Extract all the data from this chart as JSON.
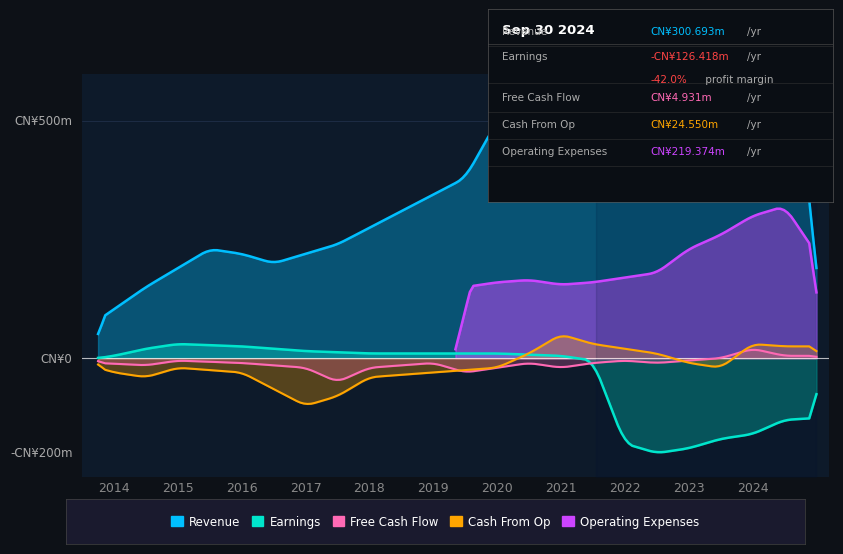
{
  "background_color": "#0d1117",
  "chart_bg_color": "#0d1a2a",
  "ylabel_500": "CN¥500m",
  "ylabel_0": "CN¥0",
  "ylabel_neg200": "-CN¥200m",
  "x_min": 2013.5,
  "x_max": 2025.2,
  "y_min": -250,
  "y_max": 600,
  "colors": {
    "revenue": "#00bfff",
    "earnings": "#00e5cc",
    "free_cash_flow": "#ff69b4",
    "cash_from_op": "#ffa500",
    "operating_expenses": "#cc44ff"
  },
  "legend_items": [
    "Revenue",
    "Earnings",
    "Free Cash Flow",
    "Cash From Op",
    "Operating Expenses"
  ],
  "info_box": {
    "date": "Sep 30 2024",
    "revenue_val": "CN¥300.693m",
    "revenue_color": "#00bfff",
    "earnings_val": "-CN¥126.418m",
    "earnings_color": "#ff4444",
    "margin_val": "-42.0%",
    "margin_color": "#ff4444",
    "fcf_val": "CN¥4.931m",
    "fcf_color": "#ff69b4",
    "cashop_val": "CN¥24.550m",
    "cashop_color": "#ffa500",
    "opex_val": "CN¥219.374m",
    "opex_color": "#cc44ff"
  }
}
